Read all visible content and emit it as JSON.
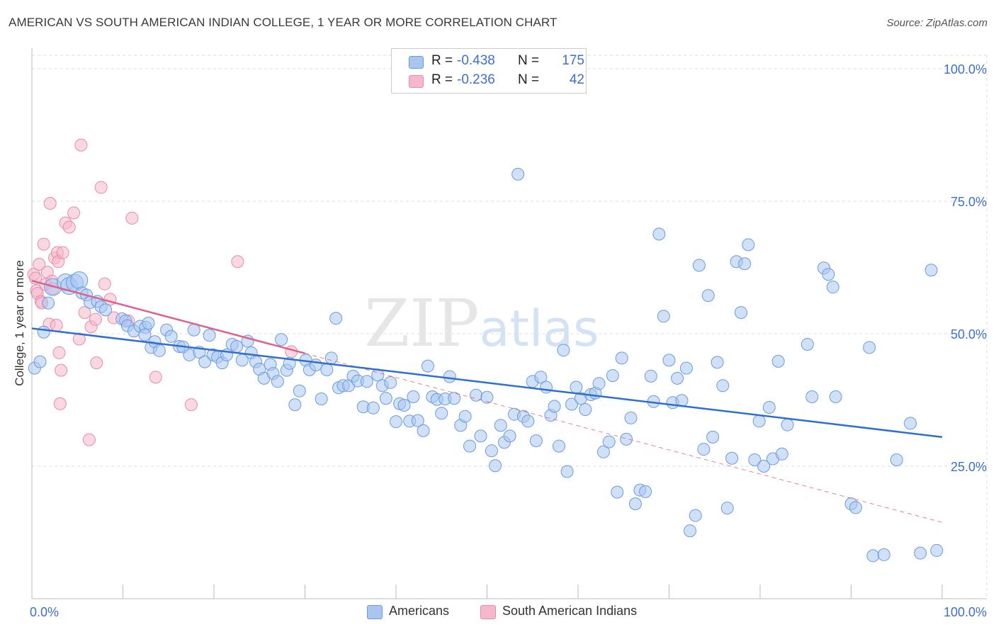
{
  "title": "AMERICAN VS SOUTH AMERICAN INDIAN COLLEGE, 1 YEAR OR MORE CORRELATION CHART",
  "source": "Source: ZipAtlas.com",
  "watermark": "ZIPatlas",
  "colors": {
    "american_fill": "#a9c6f0",
    "american_stroke": "#6b9be0",
    "american_line": "#2f6fd0",
    "sai_fill": "#f5b8cb",
    "sai_stroke": "#e88aa8",
    "sai_line": "#e0608a",
    "axis_text": "#3d6fd1",
    "grid": "#dddddd"
  },
  "legend": {
    "rows": [
      {
        "r_label": "R =",
        "r_value": "-0.438",
        "n_label": "N =",
        "n_value": "175"
      },
      {
        "r_label": "R =",
        "r_value": "-0.236",
        "n_label": "N =",
        "n_value": "42"
      }
    ]
  },
  "chart_data": {
    "type": "scatter",
    "title": "AMERICAN VS SOUTH AMERICAN INDIAN COLLEGE, 1 YEAR OR MORE CORRELATION CHART",
    "xlabel": "",
    "ylabel": "College, 1 year or more",
    "xlim": [
      0,
      100
    ],
    "ylim": [
      0,
      100
    ],
    "x_tick_labels": [
      "0.0%",
      "100.0%"
    ],
    "y_tick_labels": [
      "100.0%",
      "75.0%",
      "50.0%",
      "25.0%"
    ],
    "y_ticks": [
      100,
      75,
      50,
      25
    ],
    "grid": true,
    "legend_position": "top-center",
    "series": [
      {
        "name": "Americans",
        "r": -0.438,
        "n": 175,
        "trend": {
          "x": [
            0,
            100
          ],
          "y": [
            51,
            30.5
          ]
        },
        "points": [
          [
            0.3,
            43.5
          ],
          [
            0.9,
            44.7
          ],
          [
            1.3,
            50.3
          ],
          [
            1.8,
            55.8
          ],
          [
            2.3,
            58.8
          ],
          [
            3.7,
            59.7
          ],
          [
            4.1,
            59.0
          ],
          [
            4.7,
            59.6
          ],
          [
            5.2,
            60.1
          ],
          [
            5.5,
            57.7
          ],
          [
            6.0,
            57.3
          ],
          [
            6.4,
            55.9
          ],
          [
            7.2,
            56.1
          ],
          [
            7.6,
            55.1
          ],
          [
            8.1,
            54.5
          ],
          [
            9.9,
            52.8
          ],
          [
            10.3,
            52.4
          ],
          [
            10.5,
            51.5
          ],
          [
            11.2,
            50.5
          ],
          [
            11.9,
            51.4
          ],
          [
            12.5,
            51.2
          ],
          [
            12.4,
            49.8
          ],
          [
            12.8,
            52.0
          ],
          [
            13.1,
            47.4
          ],
          [
            13.5,
            48.5
          ],
          [
            14.0,
            46.8
          ],
          [
            14.8,
            50.7
          ],
          [
            15.3,
            49.5
          ],
          [
            16.2,
            47.6
          ],
          [
            16.6,
            47.5
          ],
          [
            17.3,
            46.0
          ],
          [
            17.8,
            50.7
          ],
          [
            18.4,
            46.5
          ],
          [
            19.0,
            44.7
          ],
          [
            19.5,
            49.7
          ],
          [
            19.9,
            46.0
          ],
          [
            20.4,
            45.6
          ],
          [
            20.9,
            44.5
          ],
          [
            21.4,
            46.0
          ],
          [
            22.0,
            48.0
          ],
          [
            22.5,
            47.6
          ],
          [
            23.1,
            45.0
          ],
          [
            23.7,
            48.6
          ],
          [
            24.1,
            46.4
          ],
          [
            24.6,
            44.7
          ],
          [
            25.0,
            43.3
          ],
          [
            25.5,
            41.6
          ],
          [
            26.2,
            44.2
          ],
          [
            26.5,
            42.5
          ],
          [
            27.0,
            41.0
          ],
          [
            27.4,
            48.9
          ],
          [
            28.0,
            43.1
          ],
          [
            28.3,
            44.4
          ],
          [
            28.9,
            36.6
          ],
          [
            29.4,
            39.2
          ],
          [
            30.1,
            45.0
          ],
          [
            30.5,
            43.2
          ],
          [
            31.2,
            44.1
          ],
          [
            31.8,
            37.7
          ],
          [
            32.4,
            43.2
          ],
          [
            32.9,
            45.4
          ],
          [
            33.4,
            52.9
          ],
          [
            33.7,
            39.8
          ],
          [
            34.2,
            40.2
          ],
          [
            34.8,
            40.2
          ],
          [
            35.3,
            42.0
          ],
          [
            35.8,
            41.1
          ],
          [
            36.4,
            36.2
          ],
          [
            36.8,
            41.0
          ],
          [
            37.5,
            36.0
          ],
          [
            38.0,
            42.2
          ],
          [
            38.5,
            40.2
          ],
          [
            38.9,
            37.8
          ],
          [
            39.4,
            40.8
          ],
          [
            40.0,
            33.4
          ],
          [
            40.4,
            36.8
          ],
          [
            40.9,
            36.5
          ],
          [
            41.5,
            33.5
          ],
          [
            41.9,
            38.1
          ],
          [
            42.4,
            33.6
          ],
          [
            43.0,
            31.7
          ],
          [
            43.5,
            43.9
          ],
          [
            44.0,
            38.1
          ],
          [
            44.5,
            37.6
          ],
          [
            45.0,
            35.0
          ],
          [
            45.4,
            37.7
          ],
          [
            45.9,
            41.9
          ],
          [
            46.4,
            37.8
          ],
          [
            47.1,
            32.7
          ],
          [
            47.6,
            34.4
          ],
          [
            48.1,
            28.8
          ],
          [
            48.8,
            38.4
          ],
          [
            49.3,
            30.7
          ],
          [
            50.0,
            38.0
          ],
          [
            50.5,
            27.9
          ],
          [
            50.9,
            25.1
          ],
          [
            51.5,
            32.7
          ],
          [
            51.9,
            29.5
          ],
          [
            52.5,
            30.7
          ],
          [
            53.0,
            34.8
          ],
          [
            53.4,
            80.1
          ],
          [
            54.0,
            34.4
          ],
          [
            54.5,
            33.5
          ],
          [
            55.0,
            41.0
          ],
          [
            55.4,
            29.8
          ],
          [
            55.9,
            41.8
          ],
          [
            56.5,
            39.9
          ],
          [
            57.0,
            34.6
          ],
          [
            57.4,
            36.3
          ],
          [
            57.9,
            28.8
          ],
          [
            58.4,
            46.9
          ],
          [
            58.8,
            24.0
          ],
          [
            59.3,
            36.7
          ],
          [
            59.8,
            39.9
          ],
          [
            60.3,
            37.8
          ],
          [
            60.8,
            35.7
          ],
          [
            61.4,
            38.5
          ],
          [
            61.9,
            38.8
          ],
          [
            62.3,
            40.6
          ],
          [
            62.8,
            27.7
          ],
          [
            63.4,
            29.6
          ],
          [
            63.8,
            42.1
          ],
          [
            64.3,
            20.1
          ],
          [
            64.8,
            45.4
          ],
          [
            65.3,
            30.1
          ],
          [
            65.8,
            34.1
          ],
          [
            66.3,
            17.9
          ],
          [
            66.8,
            20.5
          ],
          [
            67.4,
            20.2
          ],
          [
            68.0,
            42.0
          ],
          [
            68.3,
            37.2
          ],
          [
            68.9,
            68.8
          ],
          [
            69.4,
            53.3
          ],
          [
            70.0,
            45.0
          ],
          [
            70.4,
            37.0
          ],
          [
            70.9,
            41.6
          ],
          [
            71.4,
            37.4
          ],
          [
            71.9,
            43.5
          ],
          [
            72.3,
            12.8
          ],
          [
            72.9,
            15.7
          ],
          [
            73.3,
            62.9
          ],
          [
            73.8,
            28.2
          ],
          [
            74.3,
            57.2
          ],
          [
            74.8,
            30.5
          ],
          [
            75.3,
            44.6
          ],
          [
            75.9,
            40.2
          ],
          [
            76.4,
            17.1
          ],
          [
            76.9,
            26.5
          ],
          [
            77.4,
            63.6
          ],
          [
            77.9,
            54.0
          ],
          [
            78.3,
            63.2
          ],
          [
            78.7,
            66.8
          ],
          [
            79.4,
            26.2
          ],
          [
            79.9,
            33.5
          ],
          [
            80.4,
            25.0
          ],
          [
            81.0,
            36.1
          ],
          [
            81.4,
            26.4
          ],
          [
            82.0,
            44.8
          ],
          [
            82.4,
            27.3
          ],
          [
            83.0,
            32.8
          ],
          [
            85.2,
            48.0
          ],
          [
            85.7,
            38.1
          ],
          [
            87.0,
            62.4
          ],
          [
            87.5,
            61.2
          ],
          [
            88.0,
            58.8
          ],
          [
            88.3,
            38.1
          ],
          [
            90.0,
            17.9
          ],
          [
            90.5,
            17.2
          ],
          [
            92.0,
            47.4
          ],
          [
            92.4,
            8.1
          ],
          [
            93.6,
            8.3
          ],
          [
            95.0,
            26.2
          ],
          [
            96.5,
            33.1
          ],
          [
            97.6,
            8.6
          ],
          [
            98.8,
            62.0
          ],
          [
            99.4,
            9.1
          ]
        ]
      },
      {
        "name": "South American Indians",
        "r": -0.236,
        "n": 42,
        "trend": {
          "x": [
            0,
            30
          ],
          "y": [
            60,
            46.3
          ]
        },
        "trend_extended": {
          "x": [
            30,
            100
          ],
          "y": [
            46.3,
            14.4
          ]
        },
        "points": [
          [
            0.2,
            61.2
          ],
          [
            0.4,
            60.5
          ],
          [
            0.5,
            58.1
          ],
          [
            0.6,
            57.6
          ],
          [
            0.8,
            63.1
          ],
          [
            1.0,
            56.1
          ],
          [
            1.1,
            55.8
          ],
          [
            1.3,
            66.9
          ],
          [
            1.5,
            59.3
          ],
          [
            1.7,
            61.6
          ],
          [
            1.9,
            51.8
          ],
          [
            2.0,
            74.6
          ],
          [
            2.2,
            59.9
          ],
          [
            2.3,
            58.5
          ],
          [
            2.5,
            64.3
          ],
          [
            2.7,
            51.6
          ],
          [
            2.8,
            65.3
          ],
          [
            2.9,
            63.6
          ],
          [
            3.0,
            46.4
          ],
          [
            3.1,
            36.8
          ],
          [
            3.2,
            43.1
          ],
          [
            3.4,
            65.3
          ],
          [
            3.7,
            70.9
          ],
          [
            4.1,
            70.1
          ],
          [
            4.6,
            72.8
          ],
          [
            5.2,
            49.0
          ],
          [
            5.4,
            85.6
          ],
          [
            5.8,
            54.0
          ],
          [
            6.3,
            30.0
          ],
          [
            6.5,
            51.3
          ],
          [
            7.0,
            52.7
          ],
          [
            7.1,
            44.5
          ],
          [
            7.6,
            77.6
          ],
          [
            8.0,
            59.4
          ],
          [
            8.6,
            56.5
          ],
          [
            9.0,
            53.0
          ],
          [
            10.6,
            52.4
          ],
          [
            11.0,
            71.8
          ],
          [
            13.6,
            41.8
          ],
          [
            17.5,
            36.6
          ],
          [
            22.6,
            63.6
          ],
          [
            28.5,
            46.6
          ]
        ]
      }
    ]
  },
  "bottom_legend": [
    {
      "label": "Americans"
    },
    {
      "label": "South American Indians"
    }
  ]
}
